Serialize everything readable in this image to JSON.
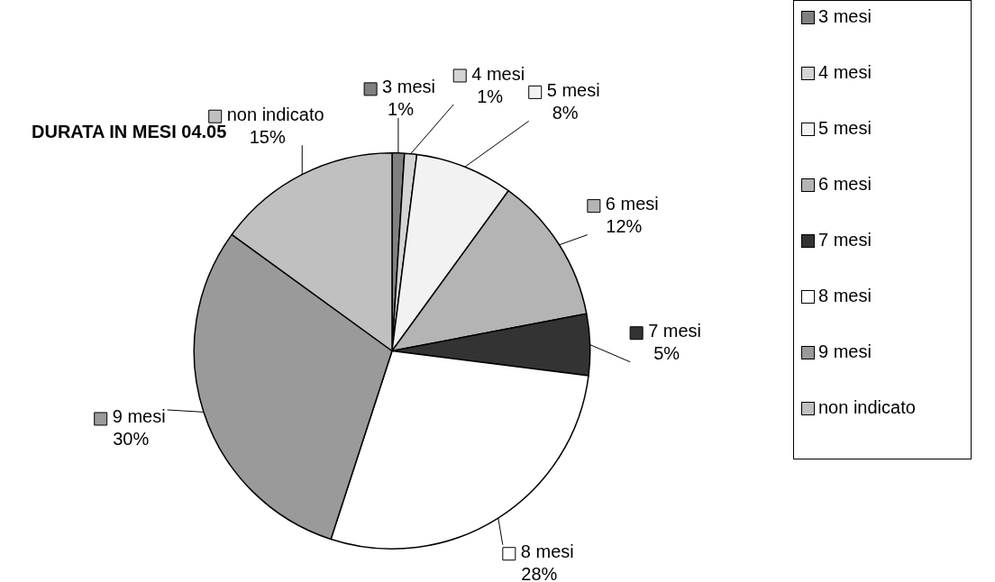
{
  "chart_data": {
    "type": "pie",
    "title": "DURATA IN MESI 04.05",
    "categories": [
      "3 mesi",
      "4 mesi",
      "5 mesi",
      "6 mesi",
      "7 mesi",
      "8 mesi",
      "9 mesi",
      "non indicato"
    ],
    "values": [
      1,
      1,
      8,
      12,
      5,
      28,
      30,
      15
    ],
    "value_labels": [
      "1%",
      "1%",
      "8%",
      "12%",
      "5%",
      "28%",
      "30%",
      "15%"
    ],
    "colors": [
      "#808080",
      "#d4d4d4",
      "#f2f2f2",
      "#b4b4b4",
      "#333333",
      "#ffffff",
      "#9a9a9a",
      "#c0c0c0"
    ],
    "legend": "top right"
  }
}
